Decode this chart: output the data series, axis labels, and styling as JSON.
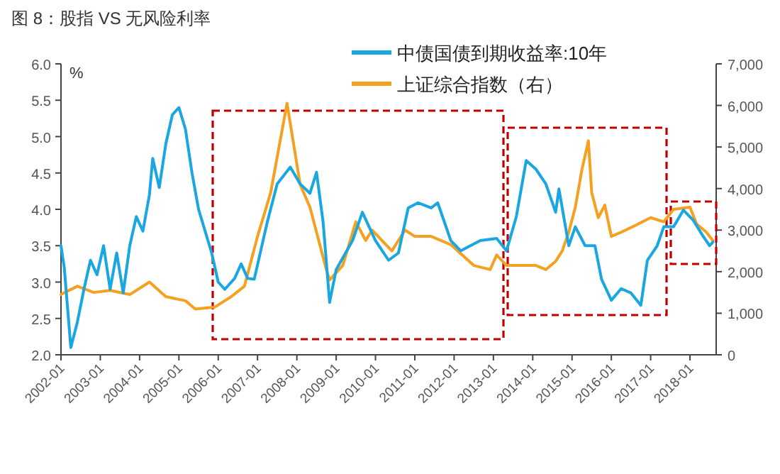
{
  "chart_data": {
    "type": "line",
    "title": "图 8：股指 VS 无风险利率",
    "ylabel": "%",
    "legend": "top",
    "grid": false,
    "marker": "none",
    "line_style": "solid",
    "xlim": [
      "2002-01",
      "2018-09"
    ],
    "xticks": [
      "2002-01",
      "2003-01",
      "2004-01",
      "2005-01",
      "2006-01",
      "2007-01",
      "2008-01",
      "2009-01",
      "2010-01",
      "2011-01",
      "2012-01",
      "2013-01",
      "2014-01",
      "2015-01",
      "2016-01",
      "2017-01",
      "2018-01"
    ],
    "ylim": [
      2,
      6
    ],
    "yticks": [
      {
        "value": 2,
        "label": "2.0"
      },
      {
        "value": 2.5,
        "label": "2.5"
      },
      {
        "value": 3,
        "label": "3.0"
      },
      {
        "value": 3.5,
        "label": "3.5"
      },
      {
        "value": 4,
        "label": "4.0"
      },
      {
        "value": 4.5,
        "label": "4.5"
      },
      {
        "value": 5,
        "label": "5.0"
      },
      {
        "value": 5.5,
        "label": "5.5"
      },
      {
        "value": 6,
        "label": "6.0"
      }
    ],
    "y2lim": [
      0,
      7000
    ],
    "y2ticks": [
      0,
      {
        "value": 1000,
        "label": "1,000"
      },
      {
        "value": 2000,
        "label": "2,000"
      },
      {
        "value": 3000,
        "label": "3,000"
      },
      {
        "value": 4000,
        "label": "4,000"
      },
      {
        "value": 5000,
        "label": "5,000"
      },
      {
        "value": 6000,
        "label": "6,000"
      },
      {
        "value": 7000,
        "label": "7,000"
      }
    ],
    "series": [
      {
        "name": "中债国债到期收益率:10年",
        "color": "#1aa6e0",
        "x": [
          "2002-01",
          "2002-02",
          "2002-04",
          "2002-06",
          "2002-08",
          "2002-10",
          "2002-12",
          "2003-02",
          "2003-04",
          "2003-06",
          "2003-08",
          "2003-10",
          "2003-12",
          "2004-02",
          "2004-04",
          "2004-05",
          "2004-07",
          "2004-09",
          "2004-11",
          "2005-01",
          "2005-03",
          "2005-05",
          "2005-07",
          "2005-09",
          "2005-11",
          "2006-01",
          "2006-03",
          "2006-06",
          "2006-08",
          "2006-10",
          "2006-12",
          "2007-04",
          "2007-07",
          "2007-11",
          "2008-02",
          "2008-05",
          "2008-07",
          "2008-09",
          "2008-11",
          "2009-01",
          "2009-06",
          "2009-09",
          "2010-01",
          "2010-05",
          "2010-08",
          "2010-11",
          "2011-02",
          "2011-06",
          "2011-08",
          "2011-12",
          "2012-03",
          "2012-06",
          "2012-09",
          "2013-02",
          "2013-05",
          "2013-08",
          "2013-11",
          "2014-02",
          "2014-05",
          "2014-08",
          "2014-09",
          "2014-10",
          "2014-12",
          "2015-02",
          "2015-05",
          "2015-08",
          "2015-10",
          "2016-01",
          "2016-04",
          "2016-07",
          "2016-10",
          "2016-12",
          "2017-03",
          "2017-05",
          "2017-08",
          "2017-11",
          "2018-02",
          "2018-05",
          "2018-07",
          "2018-08"
        ],
        "values": [
          3.5,
          3.2,
          2.1,
          2.45,
          2.9,
          3.3,
          3.1,
          3.5,
          2.9,
          3.4,
          2.85,
          3.5,
          3.9,
          3.7,
          4.2,
          4.7,
          4.3,
          4.9,
          5.3,
          5.4,
          5.1,
          4.5,
          4.0,
          3.7,
          3.4,
          3.0,
          2.9,
          3.05,
          3.25,
          3.05,
          3.04,
          3.83,
          4.35,
          4.58,
          4.35,
          4.22,
          4.51,
          3.83,
          2.72,
          3.17,
          3.57,
          3.96,
          3.57,
          3.3,
          3.4,
          4.02,
          4.09,
          4.02,
          4.09,
          3.57,
          3.43,
          3.5,
          3.57,
          3.6,
          3.43,
          3.9,
          4.67,
          4.55,
          4.35,
          3.96,
          4.28,
          4.02,
          3.5,
          3.76,
          3.5,
          3.5,
          3.04,
          2.75,
          2.91,
          2.85,
          2.68,
          3.3,
          3.5,
          3.76,
          3.76,
          3.99,
          3.85,
          3.63,
          3.5,
          3.55
        ]
      },
      {
        "name": "上证综合指数（右）",
        "color": "#f5a020",
        "axis": "y2",
        "x": [
          "2002-01",
          "2002-06",
          "2002-11",
          "2003-04",
          "2003-10",
          "2004-04",
          "2004-09",
          "2005-03",
          "2005-06",
          "2005-12",
          "2006-05",
          "2006-09",
          "2007-01",
          "2007-05",
          "2007-10",
          "2008-02",
          "2008-05",
          "2008-10",
          "2008-11",
          "2009-03",
          "2009-07",
          "2009-10",
          "2009-12",
          "2010-06",
          "2010-10",
          "2011-01",
          "2011-06",
          "2011-12",
          "2012-07",
          "2012-12",
          "2013-02",
          "2013-05",
          "2014-02",
          "2014-05",
          "2014-08",
          "2014-10",
          "2014-12",
          "2015-02",
          "2015-04",
          "2015-06",
          "2015-07",
          "2015-09",
          "2015-11",
          "2016-01",
          "2016-04",
          "2016-08",
          "2017-01",
          "2017-05",
          "2017-08",
          "2018-01",
          "2018-03",
          "2018-06",
          "2018-08"
        ],
        "values": [
          1450,
          1650,
          1500,
          1550,
          1450,
          1750,
          1400,
          1300,
          1100,
          1150,
          1400,
          1650,
          2850,
          3900,
          6050,
          4100,
          3550,
          2050,
          1800,
          2150,
          3200,
          2750,
          3000,
          2500,
          3000,
          2850,
          2850,
          2650,
          2150,
          2050,
          2400,
          2150,
          2150,
          2050,
          2250,
          2500,
          2950,
          3550,
          4450,
          5150,
          3900,
          3300,
          3600,
          2850,
          2950,
          3100,
          3300,
          3200,
          3500,
          3550,
          3150,
          2950,
          2750
        ]
      }
    ]
  }
}
